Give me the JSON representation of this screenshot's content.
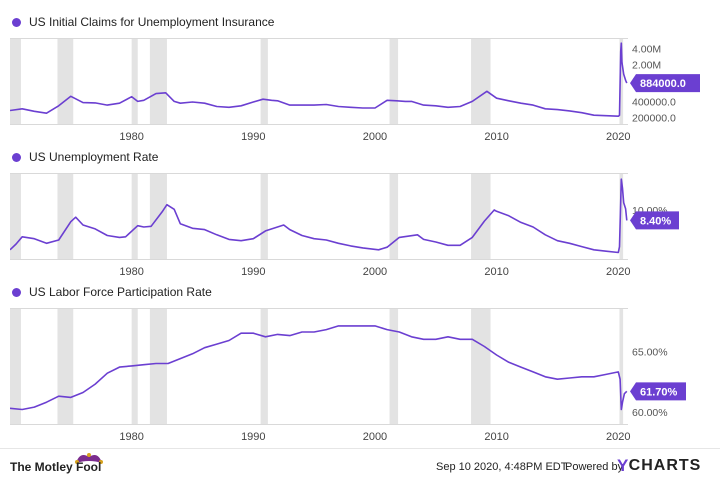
{
  "brand": {
    "left": "The Motley Fool",
    "timestamp": "Sep 10 2020, 4:48PM EDT.",
    "powered_by": "Powered by",
    "right": "YCHARTS",
    "accent": "#6b3fd1"
  },
  "chart_data": [
    {
      "type": "line",
      "title": "US Initial Claims for Unemployment Insurance",
      "color": "#6b3fd1",
      "scale": "log",
      "x_ticks": [
        "1980",
        "1990",
        "2000",
        "2010",
        "2020"
      ],
      "y_ticks": [
        "200000.0",
        "400000.0",
        "1.00M",
        "2.00M",
        "4.00M"
      ],
      "last_value_label": "884000.0",
      "recessions": [
        [
          1970.0,
          1970.9
        ],
        [
          1973.9,
          1975.2
        ],
        [
          1980.0,
          1980.5
        ],
        [
          1981.5,
          1982.9
        ],
        [
          1990.6,
          1991.2
        ],
        [
          2001.2,
          2001.9
        ],
        [
          2007.9,
          2009.5
        ],
        [
          2020.1,
          2020.4
        ]
      ],
      "x": [
        1970.0,
        1971.0,
        1972.0,
        1973.0,
        1974.0,
        1975.0,
        1976.0,
        1977.0,
        1978.0,
        1979.0,
        1980.0,
        1980.5,
        1981.0,
        1982.0,
        1982.8,
        1983.5,
        1984.0,
        1985.0,
        1986.0,
        1987.0,
        1988.0,
        1989.0,
        1990.0,
        1990.8,
        1991.5,
        1992.0,
        1993.0,
        1994.0,
        1995.0,
        1996.0,
        1997.0,
        1998.0,
        1999.0,
        2000.0,
        2001.0,
        2001.8,
        2002.5,
        2003.0,
        2004.0,
        2005.0,
        2006.0,
        2007.0,
        2008.0,
        2009.2,
        2010.0,
        2011.0,
        2012.0,
        2013.0,
        2014.0,
        2015.0,
        2016.0,
        2017.0,
        2018.0,
        2019.0,
        2020.0,
        2020.1,
        2020.2,
        2020.25,
        2020.3,
        2020.45,
        2020.6,
        2020.7
      ],
      "values": [
        270000,
        290000,
        260000,
        240000,
        330000,
        500000,
        380000,
        375000,
        340000,
        370000,
        490000,
        400000,
        420000,
        560000,
        580000,
        400000,
        370000,
        390000,
        370000,
        320000,
        310000,
        330000,
        390000,
        440000,
        420000,
        410000,
        340000,
        340000,
        340000,
        350000,
        320000,
        310000,
        300000,
        300000,
        420000,
        410000,
        400000,
        400000,
        340000,
        330000,
        310000,
        320000,
        400000,
        620000,
        460000,
        410000,
        370000,
        340000,
        290000,
        280000,
        265000,
        245000,
        220000,
        215000,
        210000,
        220000,
        3500000,
        5000000,
        2200000,
        1300000,
        1000000,
        884000
      ]
    },
    {
      "type": "line",
      "title": "US Unemployment Rate",
      "color": "#6b3fd1",
      "x_ticks": [
        "1980",
        "1990",
        "2000",
        "2010",
        "2020"
      ],
      "y_ticks": [
        "10.00%"
      ],
      "last_value_label": "8.40%",
      "recessions": [
        [
          1970.0,
          1970.9
        ],
        [
          1973.9,
          1975.2
        ],
        [
          1980.0,
          1980.5
        ],
        [
          1981.5,
          1982.9
        ],
        [
          1990.6,
          1991.2
        ],
        [
          2001.2,
          2001.9
        ],
        [
          2007.9,
          2009.5
        ],
        [
          2020.1,
          2020.4
        ]
      ],
      "x": [
        1970.0,
        1970.5,
        1971.0,
        1972.0,
        1973.0,
        1974.0,
        1975.0,
        1975.4,
        1976.0,
        1977.0,
        1978.0,
        1979.0,
        1979.5,
        1980.5,
        1981.0,
        1981.6,
        1982.5,
        1982.9,
        1983.5,
        1984.0,
        1985.0,
        1986.0,
        1987.0,
        1988.0,
        1989.0,
        1990.0,
        1991.0,
        1992.5,
        1993.0,
        1994.0,
        1995.0,
        1996.0,
        1997.0,
        1998.0,
        1999.0,
        2000.3,
        2001.0,
        2002.0,
        2003.5,
        2004.0,
        2005.0,
        2006.0,
        2007.0,
        2008.0,
        2009.0,
        2009.8,
        2010.0,
        2011.0,
        2012.0,
        2013.0,
        2014.0,
        2015.0,
        2016.0,
        2017.0,
        2018.0,
        2019.0,
        2020.0,
        2020.1,
        2020.25,
        2020.35,
        2020.45,
        2020.6,
        2020.7
      ],
      "values": [
        3.9,
        4.8,
        5.9,
        5.6,
        4.9,
        5.4,
        8.2,
        8.9,
        7.7,
        7.1,
        6.1,
        5.8,
        5.9,
        7.6,
        7.4,
        7.5,
        9.7,
        10.8,
        10.1,
        7.9,
        7.2,
        7.0,
        6.2,
        5.5,
        5.3,
        5.6,
        6.8,
        7.7,
        7.0,
        6.1,
        5.6,
        5.4,
        4.9,
        4.5,
        4.2,
        3.9,
        4.3,
        5.8,
        6.2,
        5.5,
        5.1,
        4.6,
        4.6,
        5.8,
        8.3,
        10.0,
        9.8,
        9.1,
        8.1,
        7.4,
        6.2,
        5.3,
        4.9,
        4.4,
        3.9,
        3.7,
        3.5,
        4.4,
        14.7,
        13.3,
        11.1,
        10.2,
        8.4
      ]
    },
    {
      "type": "line",
      "title": "US Labor Force Participation Rate",
      "color": "#6b3fd1",
      "x_ticks": [
        "1980",
        "1990",
        "2000",
        "2010",
        "2020"
      ],
      "y_ticks": [
        "60.00%",
        "65.00%"
      ],
      "last_value_label": "61.70%",
      "recessions": [
        [
          1970.0,
          1970.9
        ],
        [
          1973.9,
          1975.2
        ],
        [
          1980.0,
          1980.5
        ],
        [
          1981.5,
          1982.9
        ],
        [
          1990.6,
          1991.2
        ],
        [
          2001.2,
          2001.9
        ],
        [
          2007.9,
          2009.5
        ],
        [
          2020.1,
          2020.4
        ]
      ],
      "x": [
        1970.0,
        1971.0,
        1972.0,
        1973.0,
        1974.0,
        1975.0,
        1976.0,
        1977.0,
        1978.0,
        1979.0,
        1980.0,
        1981.0,
        1982.0,
        1983.0,
        1984.0,
        1985.0,
        1986.0,
        1987.0,
        1988.0,
        1989.0,
        1990.0,
        1991.0,
        1992.0,
        1993.0,
        1994.0,
        1995.0,
        1996.0,
        1997.0,
        1998.0,
        1999.0,
        2000.0,
        2001.0,
        2002.0,
        2003.0,
        2004.0,
        2005.0,
        2006.0,
        2007.0,
        2008.0,
        2009.0,
        2010.0,
        2011.0,
        2012.0,
        2013.0,
        2014.0,
        2015.0,
        2016.0,
        2017.0,
        2018.0,
        2019.0,
        2020.0,
        2020.15,
        2020.25,
        2020.35,
        2020.5,
        2020.7
      ],
      "values": [
        60.3,
        60.2,
        60.4,
        60.8,
        61.3,
        61.2,
        61.6,
        62.3,
        63.2,
        63.7,
        63.8,
        63.9,
        64.0,
        64.0,
        64.4,
        64.8,
        65.3,
        65.6,
        65.9,
        66.5,
        66.5,
        66.2,
        66.4,
        66.3,
        66.6,
        66.6,
        66.8,
        67.1,
        67.1,
        67.1,
        67.1,
        66.8,
        66.6,
        66.2,
        66.0,
        66.0,
        66.2,
        66.0,
        66.0,
        65.4,
        64.7,
        64.1,
        63.7,
        63.3,
        62.9,
        62.7,
        62.8,
        62.9,
        62.9,
        63.1,
        63.3,
        62.7,
        60.2,
        60.8,
        61.5,
        61.7
      ]
    }
  ]
}
